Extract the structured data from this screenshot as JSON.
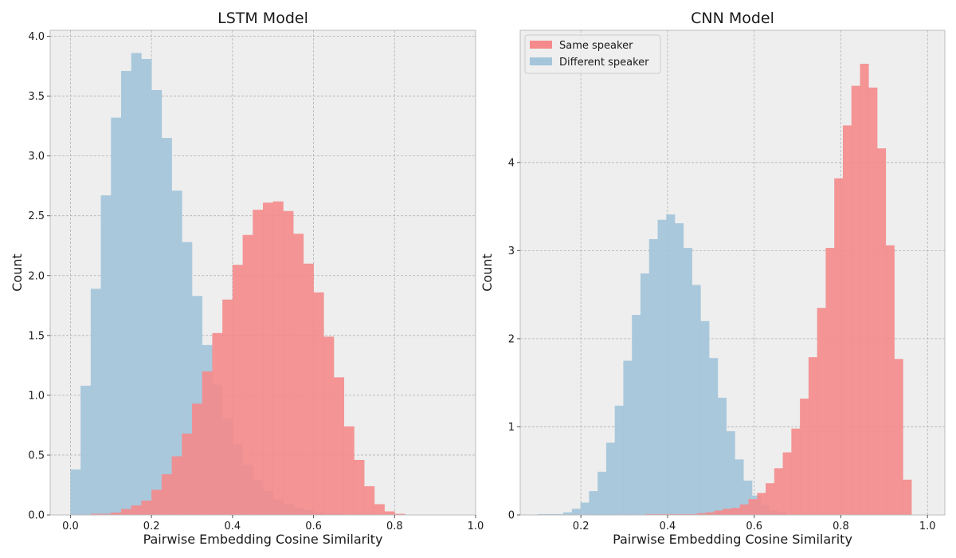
{
  "chart_data": [
    {
      "type": "histogram",
      "title": "LSTM Model",
      "xlabel": "Pairwise Embedding Cosine Similarity",
      "ylabel": "Count",
      "xlim": [
        -0.05,
        1.0
      ],
      "ylim": [
        0,
        4.05
      ],
      "xticks": [
        "0.0",
        "0.2",
        "0.4",
        "0.6",
        "0.8",
        "1.0"
      ],
      "yticks": [
        "0.0",
        "0.5",
        "1.0",
        "1.5",
        "2.0",
        "2.5",
        "3.0",
        "3.5",
        "4.0"
      ],
      "grid": true,
      "legend": null,
      "series": [
        {
          "name": "Different speaker",
          "color": "#a4c5da",
          "bin_start": 0.0,
          "bin_width": 0.025,
          "values": [
            0.38,
            1.08,
            1.89,
            2.67,
            3.32,
            3.71,
            3.86,
            3.81,
            3.55,
            3.15,
            2.71,
            2.28,
            1.83,
            1.42,
            1.09,
            0.81,
            0.59,
            0.42,
            0.29,
            0.2,
            0.13,
            0.09,
            0.06,
            0.04,
            0.02,
            0.01,
            0.01,
            0.0
          ]
        },
        {
          "name": "Same speaker",
          "color": "#f48a8b",
          "bin_start": 0.0,
          "bin_width": 0.025,
          "values": [
            0.0,
            0.0,
            0.01,
            0.01,
            0.02,
            0.05,
            0.08,
            0.12,
            0.21,
            0.34,
            0.49,
            0.68,
            0.93,
            1.2,
            1.52,
            1.8,
            2.09,
            2.34,
            2.55,
            2.61,
            2.62,
            2.54,
            2.35,
            2.1,
            1.86,
            1.49,
            1.15,
            0.74,
            0.46,
            0.24,
            0.09,
            0.03,
            0.01,
            0.0
          ]
        }
      ]
    },
    {
      "type": "histogram",
      "title": "CNN Model",
      "xlabel": "Pairwise Embedding Cosine Similarity",
      "ylabel": "Count",
      "xlim": [
        0.06,
        1.04
      ],
      "ylim": [
        0,
        5.5
      ],
      "xticks": [
        "0.2",
        "0.4",
        "0.6",
        "0.8",
        "1.0"
      ],
      "yticks": [
        "0",
        "1",
        "2",
        "3",
        "4"
      ],
      "grid": true,
      "legend": "top-left",
      "series": [
        {
          "name": "Different speaker",
          "color": "#a4c5da",
          "bin_start": 0.1,
          "bin_width": 0.0198,
          "values": [
            0.01,
            0.01,
            0.01,
            0.03,
            0.07,
            0.14,
            0.27,
            0.49,
            0.82,
            1.24,
            1.75,
            2.27,
            2.74,
            3.13,
            3.35,
            3.41,
            3.31,
            3.03,
            2.61,
            2.2,
            1.78,
            1.33,
            0.95,
            0.63,
            0.39,
            0.22,
            0.11,
            0.05,
            0.03,
            0.01,
            0.01
          ]
        },
        {
          "name": "Same speaker",
          "color": "#f48a8b",
          "bin_start": 0.27,
          "bin_width": 0.0198,
          "values": [
            0.0,
            0.0,
            0.0,
            0.0,
            0.01,
            0.01,
            0.01,
            0.01,
            0.01,
            0.01,
            0.02,
            0.03,
            0.05,
            0.07,
            0.08,
            0.12,
            0.18,
            0.25,
            0.36,
            0.53,
            0.71,
            0.98,
            1.32,
            1.79,
            2.35,
            3.03,
            3.82,
            4.42,
            4.87,
            5.12,
            4.85,
            4.16,
            3.06,
            1.77,
            0.4
          ]
        }
      ]
    }
  ]
}
